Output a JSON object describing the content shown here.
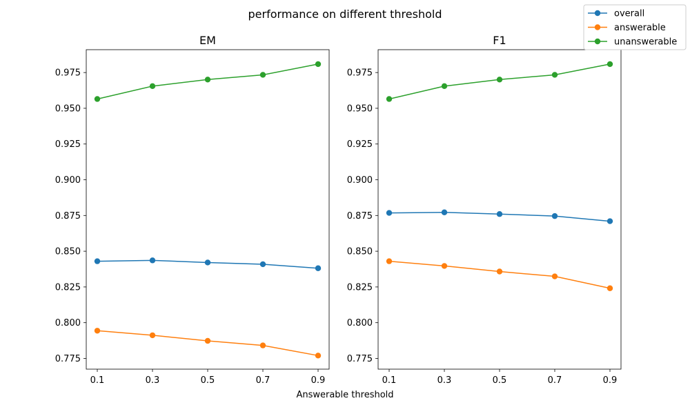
{
  "chart_data": {
    "type": "line",
    "suptitle": "performance on different threshold",
    "xlabel": "Answerable threshold",
    "x": [
      0.1,
      0.3,
      0.5,
      0.7,
      0.9
    ],
    "xticks": [
      "0.1",
      "0.3",
      "0.5",
      "0.7",
      "0.9"
    ],
    "ylim": [
      0.7675,
      0.991
    ],
    "yticks": [
      "0.775",
      "0.800",
      "0.825",
      "0.850",
      "0.875",
      "0.900",
      "0.925",
      "0.950",
      "0.975"
    ],
    "legend": {
      "placement": "top-right",
      "entries": [
        "overall",
        "answerable",
        "unanswerable"
      ]
    },
    "colors": {
      "overall": "#1f77b4",
      "answerable": "#ff7f0e",
      "unanswerable": "#2ca02c"
    },
    "grid": false,
    "panels": [
      {
        "title": "EM",
        "series": [
          {
            "name": "overall",
            "values": [
              0.843,
              0.8436,
              0.8421,
              0.8409,
              0.8381
            ]
          },
          {
            "name": "answerable",
            "values": [
              0.7944,
              0.7912,
              0.7873,
              0.7841,
              0.777
            ]
          },
          {
            "name": "unanswerable",
            "values": [
              0.9565,
              0.9655,
              0.9701,
              0.9734,
              0.9809
            ]
          }
        ]
      },
      {
        "title": "F1",
        "series": [
          {
            "name": "overall",
            "values": [
              0.8768,
              0.8772,
              0.876,
              0.8746,
              0.871
            ]
          },
          {
            "name": "answerable",
            "values": [
              0.843,
              0.8397,
              0.8358,
              0.8324,
              0.8241
            ]
          },
          {
            "name": "unanswerable",
            "values": [
              0.9565,
              0.9655,
              0.9701,
              0.9734,
              0.9809
            ]
          }
        ]
      }
    ]
  }
}
